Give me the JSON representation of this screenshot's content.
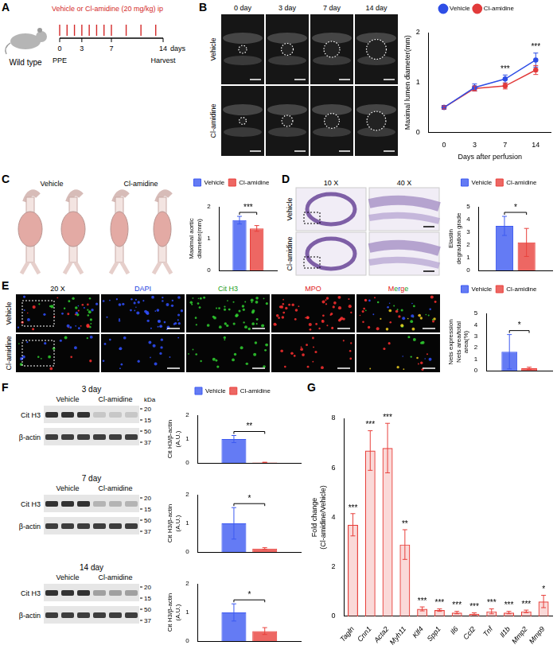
{
  "figure": {
    "panel_letters": [
      "A",
      "B",
      "C",
      "D",
      "E",
      "F",
      "G"
    ],
    "schematic": {
      "strain": "Wild type",
      "treatment": "Vehicle or Cl-amidine (20 mg/kg) ip",
      "days": [
        0,
        3,
        7,
        14
      ],
      "unit": "days",
      "start": "PPE",
      "end": "Harvest",
      "injection_days": [
        0,
        1,
        2,
        3,
        4,
        5,
        6,
        7,
        9,
        11,
        13
      ]
    },
    "ultrasound": {
      "columns": [
        "0 day",
        "3 day",
        "7 day",
        "14 day"
      ],
      "rows": [
        "Vehicle",
        "Cl-amidine"
      ]
    },
    "aortas": {
      "columns": [
        "Vehicle",
        "Cl-amidine"
      ]
    },
    "histology": {
      "columns": [
        "10 X",
        "40 X"
      ],
      "rows": [
        "Vehicle",
        "Cl-amidine"
      ]
    },
    "immunofluorescence": {
      "columns": [
        "20 X",
        "DAPI",
        "Cit H3",
        "MPO",
        "Merge"
      ],
      "rows": [
        "Vehicle",
        "Cl-amidine"
      ]
    },
    "blots": [
      {
        "title": "3 day",
        "lanes": [
          "Vehicle",
          "Cl-amidine"
        ],
        "marker_unit": "kDa",
        "rows": [
          {
            "label": "Cit H3",
            "markers": [
              20,
              15
            ]
          },
          {
            "label": "β-actin",
            "markers": [
              50,
              37
            ]
          }
        ]
      },
      {
        "title": "7 day",
        "lanes": [
          "Vehicle",
          "Cl-amidine"
        ],
        "rows": [
          {
            "label": "Cit H3",
            "markers": [
              20,
              15
            ]
          },
          {
            "label": "β-actin",
            "markers": [
              50,
              37
            ]
          }
        ]
      },
      {
        "title": "14 day",
        "lanes": [
          "Vehicle",
          "Cl-amidine"
        ],
        "rows": [
          {
            "label": "Cit H3",
            "markers": [
              20,
              15
            ]
          },
          {
            "label": "β-actin",
            "markers": [
              50,
              37
            ]
          }
        ]
      }
    ]
  },
  "chart_data": [
    {
      "type": "line",
      "y_label": "Maximal lumen diameter(mm)",
      "x_label": "Days after perfusion",
      "categories": [
        "0",
        "3",
        "7",
        "14"
      ],
      "series": [
        {
          "name": "Vehicle",
          "color": "#2e4ee6",
          "marker": "circle",
          "values": [
            0.5,
            0.9,
            1.07,
            1.45
          ],
          "errors": [
            0.04,
            0.07,
            0.08,
            0.14
          ]
        },
        {
          "name": "Cl-amidine",
          "color": "#e23b3b",
          "marker": "circle",
          "values": [
            0.5,
            0.88,
            0.93,
            1.25
          ],
          "errors": [
            0.03,
            0.05,
            0.06,
            0.09
          ]
        }
      ],
      "ylim": [
        0,
        2
      ],
      "yticks": [
        0,
        1,
        2
      ],
      "grid": false,
      "legend": "top",
      "annotations": [
        {
          "text": "***",
          "category": "7"
        },
        {
          "text": "***",
          "category": "14"
        }
      ]
    },
    {
      "type": "bar",
      "y_label": "Maximal aortic diameter(mm)",
      "categories": [
        null
      ],
      "series": [
        {
          "name": "Vehicle",
          "color": "#3d5af1",
          "values": [
            1.58
          ],
          "errors": [
            0.12
          ]
        },
        {
          "name": "Cl-amidine",
          "color": "#e8413c",
          "values": [
            1.32
          ],
          "errors": [
            0.09
          ]
        }
      ],
      "ylim": [
        0,
        2
      ],
      "yticks": [
        0,
        1,
        2
      ],
      "grid": false,
      "legend": "top",
      "tick_labels": "y",
      "annotations": [
        {
          "text": "***"
        }
      ]
    },
    {
      "type": "bar",
      "y_label": "Elastin degradation grade",
      "categories": [
        null
      ],
      "series": [
        {
          "name": "Vehicle",
          "color": "#3d5af1",
          "values": [
            3.5
          ],
          "errors": [
            0.75
          ]
        },
        {
          "name": "Cl-amidine",
          "color": "#e8413c",
          "values": [
            2.2
          ],
          "errors": [
            1.1
          ]
        }
      ],
      "ylim": [
        0,
        5
      ],
      "yticks": [
        0,
        1,
        2,
        3,
        4,
        5
      ],
      "grid": false,
      "legend": "top",
      "tick_labels": "y",
      "annotations": [
        {
          "text": "*"
        }
      ]
    },
    {
      "type": "bar",
      "y_label": [
        "Nets expression",
        "Nets area/total area(%)"
      ],
      "categories": [
        null
      ],
      "series": [
        {
          "name": "Vehicle",
          "color": "#3d5af1",
          "values": [
            1.65
          ],
          "errors": [
            1.5
          ]
        },
        {
          "name": "Cl-amidine",
          "color": "#e8413c",
          "values": [
            0.2
          ],
          "errors": [
            0.1
          ]
        }
      ],
      "ylim": [
        0,
        5
      ],
      "yticks": [
        0,
        1,
        2,
        3,
        4,
        5
      ],
      "grid": false,
      "legend": "top",
      "tick_labels": "y",
      "annotations": [
        {
          "text": "*"
        }
      ]
    },
    {
      "type": "bar",
      "y_label": "Cit H3/β-actin (A.U.)",
      "categories": [
        null
      ],
      "series": [
        {
          "name": "Vehicle",
          "color": "#3d5af1",
          "values": [
            1.0
          ],
          "errors": [
            0.15
          ]
        },
        {
          "name": "Cl-amidine",
          "color": "#e8413c",
          "values": [
            0.02
          ],
          "errors": [
            0.01
          ]
        }
      ],
      "ylim": [
        0,
        2
      ],
      "yticks": [
        0,
        1,
        2
      ],
      "grid": false,
      "legend": "top",
      "tick_labels": "y",
      "annotations": [
        {
          "text": "**"
        }
      ]
    },
    {
      "type": "bar",
      "y_label": "Cit H3/β-actin (A.U.)",
      "categories": [
        null
      ],
      "series": [
        {
          "color": "#3d5af1",
          "values": [
            1.0
          ],
          "errors": [
            0.55
          ]
        },
        {
          "color": "#e8413c",
          "values": [
            0.12
          ],
          "errors": [
            0.03
          ]
        }
      ],
      "ylim": [
        0,
        2
      ],
      "yticks": [
        0,
        1,
        2
      ],
      "grid": false,
      "tick_labels": "y",
      "annotations": [
        {
          "text": "*"
        }
      ]
    },
    {
      "type": "bar",
      "y_label": "Cit H3/β-actin (A.U.)",
      "categories": [
        null
      ],
      "series": [
        {
          "color": "#3d5af1",
          "values": [
            1.0
          ],
          "errors": [
            0.3
          ]
        },
        {
          "color": "#e8413c",
          "values": [
            0.35
          ],
          "errors": [
            0.12
          ]
        }
      ],
      "ylim": [
        0,
        2
      ],
      "yticks": [
        0,
        1,
        2
      ],
      "grid": false,
      "tick_labels": "y",
      "annotations": [
        {
          "text": "*"
        }
      ]
    },
    {
      "type": "bar",
      "y_label": "Fold change (Cl-amidine/Vehicle)",
      "categories": [
        "Tagln",
        "Cnn1",
        "Acta2",
        "Myh11",
        "Klf4",
        "Spp1",
        "Il6",
        "Ccl2",
        "Tnf",
        "Il1b",
        "Mmp2",
        "Mmp9"
      ],
      "values": [
        3.7,
        6.7,
        6.8,
        2.9,
        0.3,
        0.25,
        0.15,
        0.1,
        0.2,
        0.15,
        0.2,
        0.6
      ],
      "errors": [
        0.45,
        0.8,
        1.0,
        0.6,
        0.08,
        0.05,
        0.05,
        0.04,
        0.1,
        0.05,
        0.05,
        0.25
      ],
      "color": "#e8413c",
      "ylim": [
        0,
        8
      ],
      "yticks": [
        0,
        2,
        4,
        6,
        8
      ],
      "grid": false,
      "annotations": [
        {
          "text": "***",
          "category": "Tagln"
        },
        {
          "text": "***",
          "category": "Cnn1"
        },
        {
          "text": "***",
          "category": "Acta2"
        },
        {
          "text": "**",
          "category": "Myh11"
        },
        {
          "text": "***",
          "category": "Klf4"
        },
        {
          "text": "***",
          "category": "Spp1"
        },
        {
          "text": "***",
          "category": "Il6"
        },
        {
          "text": "***",
          "category": "Ccl2"
        },
        {
          "text": "***",
          "category": "Tnf"
        },
        {
          "text": "***",
          "category": "Il1b"
        },
        {
          "text": "***",
          "category": "Mmp2"
        },
        {
          "text": "*",
          "category": "Mmp9"
        }
      ]
    }
  ]
}
